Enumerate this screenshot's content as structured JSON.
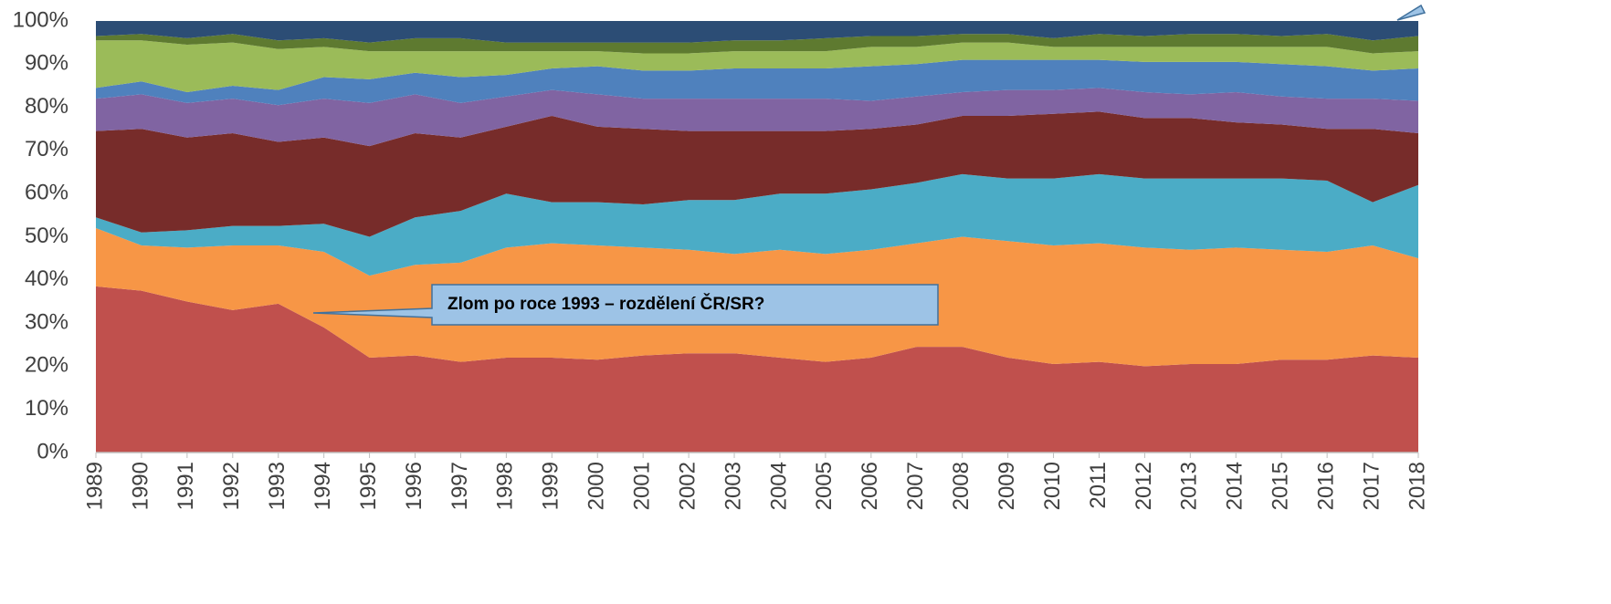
{
  "chart_data": {
    "type": "stacked_area",
    "categories": [
      "1989",
      "1990",
      "1991",
      "1992",
      "1993",
      "1994",
      "1995",
      "1996",
      "1997",
      "1998",
      "1999",
      "2000",
      "2001",
      "2002",
      "2003",
      "2004",
      "2005",
      "2006",
      "2007",
      "2008",
      "2009",
      "2010",
      "2011",
      "2012",
      "2013",
      "2014",
      "2015",
      "2016",
      "2017",
      "2018"
    ],
    "series": [
      {
        "color": "#c0504d",
        "values": [
          38.5,
          37.5,
          35,
          33,
          34.5,
          29,
          22,
          22.5,
          21,
          22,
          22,
          21.5,
          22.5,
          23,
          23,
          22,
          21,
          22,
          24.5,
          24.5,
          22,
          20.5,
          21,
          20,
          20.5,
          20.5,
          21.5,
          21.5,
          22.5,
          22
        ]
      },
      {
        "color": "#f79646",
        "values": [
          13.5,
          10.5,
          12.5,
          15,
          13.5,
          17.5,
          19,
          21,
          23,
          25.5,
          26.5,
          26.5,
          25,
          24,
          23,
          25,
          25,
          25,
          24,
          25.5,
          27,
          27.5,
          27.5,
          27.5,
          26.5,
          27,
          25.5,
          25,
          25.5,
          23
        ]
      },
      {
        "color": "#4bacc6",
        "values": [
          2.5,
          3,
          4,
          4.5,
          4.5,
          6.5,
          9,
          11,
          12,
          12.5,
          9.5,
          10,
          10,
          11.5,
          12.5,
          13,
          14,
          14,
          14,
          14.5,
          14.5,
          15.5,
          16,
          16,
          16.5,
          16,
          16.5,
          16.5,
          10,
          17
        ]
      },
      {
        "color": "#772c2a",
        "values": [
          20,
          24,
          21.5,
          21.5,
          19.5,
          20,
          21,
          19.5,
          17,
          15.5,
          20,
          17.5,
          17.5,
          16,
          16,
          14.5,
          14.5,
          14,
          13.5,
          13.5,
          14.5,
          15,
          14.5,
          14,
          14,
          13,
          12.5,
          12,
          17,
          12
        ]
      },
      {
        "color": "#8064a2",
        "values": [
          7.5,
          8,
          8,
          8,
          8.5,
          9,
          10,
          9,
          8,
          7,
          6,
          7.5,
          7,
          7.5,
          7.5,
          7.5,
          7.5,
          6.5,
          6.5,
          5.5,
          6,
          5.5,
          5.5,
          6,
          5.5,
          7,
          6.5,
          7,
          7,
          7.5
        ]
      },
      {
        "color": "#4f81bd",
        "values": [
          2.5,
          3,
          2.5,
          3,
          3.5,
          5,
          5.5,
          5,
          6,
          5,
          5,
          6.5,
          6.5,
          6.5,
          7,
          7,
          7,
          8,
          7.5,
          7.5,
          7,
          7,
          6.5,
          7,
          7.5,
          7,
          7.5,
          7.5,
          6.5,
          7.5
        ]
      },
      {
        "color": "#9bbb59",
        "values": [
          11,
          9.5,
          11,
          10,
          9.5,
          7,
          6.5,
          5,
          6,
          5.5,
          4,
          3.5,
          4,
          4,
          4,
          4,
          4,
          4.5,
          4,
          4,
          4,
          3,
          3,
          3.5,
          3.5,
          3.5,
          4,
          4.5,
          4,
          4
        ]
      },
      {
        "color": "#5e7a30",
        "values": [
          1,
          1.5,
          1.5,
          2,
          2,
          2,
          2,
          3,
          3,
          2,
          2,
          2,
          2.5,
          2.5,
          2.5,
          2.5,
          3,
          2.5,
          2.5,
          2,
          2,
          2,
          3,
          2.5,
          3,
          3,
          2.5,
          3,
          3,
          3.5
        ]
      },
      {
        "color": "#2c4d75",
        "values": [
          3.5,
          3,
          4,
          3,
          4.5,
          4,
          5,
          4,
          4,
          5,
          5,
          5,
          5,
          5,
          4.5,
          4.5,
          4,
          3.5,
          3.5,
          3,
          3,
          4,
          3,
          3.5,
          3,
          3,
          3.5,
          3,
          4.5,
          3.5
        ]
      }
    ],
    "ylim": [
      0,
      100
    ],
    "yticks": [
      {
        "value": 0,
        "label": "0%"
      },
      {
        "value": 10,
        "label": "10%"
      },
      {
        "value": 20,
        "label": "20%"
      },
      {
        "value": 30,
        "label": "30%"
      },
      {
        "value": 40,
        "label": "40%"
      },
      {
        "value": 50,
        "label": "50%"
      },
      {
        "value": 60,
        "label": "60%"
      },
      {
        "value": 70,
        "label": "70%"
      },
      {
        "value": 80,
        "label": "80%"
      },
      {
        "value": 90,
        "label": "90%"
      },
      {
        "value": 100,
        "label": "100%"
      }
    ],
    "grid": false,
    "annotation": "Zlom po roce 1993 – rozdělení ČR/SR?"
  }
}
